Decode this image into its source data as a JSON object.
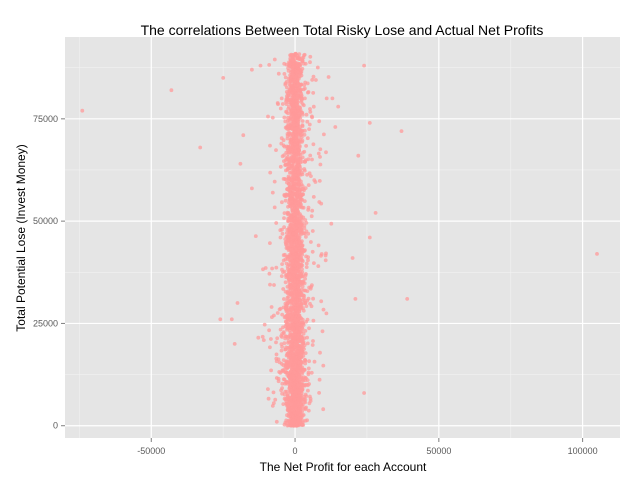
{
  "chart_data": {
    "type": "scatter",
    "title": "The correlations Between Total Risky Lose and Actual Net Profits",
    "xlabel": "The Net Profit for each Account",
    "ylabel": "Total Potential Lose (Invest Money)",
    "xlim": [
      -80000,
      113000
    ],
    "ylim": [
      -3000,
      95000
    ],
    "x_ticks": [
      -50000,
      0,
      50000,
      100000
    ],
    "x_tick_labels": [
      "-50000",
      "0",
      "50000",
      "100000"
    ],
    "y_ticks": [
      0,
      25000,
      50000,
      75000
    ],
    "y_tick_labels": [
      "0",
      "25000",
      "50000",
      "75000"
    ],
    "grid": true,
    "legend": "none",
    "point_color": "#ff9999",
    "panel_color": "#e5e5e5",
    "outliers": [
      {
        "x": -74000,
        "y": 77000
      },
      {
        "x": -43000,
        "y": 82000
      },
      {
        "x": -33000,
        "y": 68000
      },
      {
        "x": -25000,
        "y": 85000
      },
      {
        "x": -26000,
        "y": 26000
      },
      {
        "x": -20000,
        "y": 30000
      },
      {
        "x": -18000,
        "y": 71000
      },
      {
        "x": -21000,
        "y": 20000
      },
      {
        "x": -22000,
        "y": 26000
      },
      {
        "x": -15000,
        "y": 87000
      },
      {
        "x": -12000,
        "y": 88000
      },
      {
        "x": -19000,
        "y": 64000
      },
      {
        "x": 15000,
        "y": 78000
      },
      {
        "x": 14000,
        "y": 73000
      },
      {
        "x": 24000,
        "y": 88000
      },
      {
        "x": 26000,
        "y": 74000
      },
      {
        "x": 22000,
        "y": 66000
      },
      {
        "x": 28000,
        "y": 52000
      },
      {
        "x": 26000,
        "y": 46000
      },
      {
        "x": 37000,
        "y": 72000
      },
      {
        "x": 39000,
        "y": 31000
      },
      {
        "x": 20000,
        "y": 41000
      },
      {
        "x": 24000,
        "y": 8000
      },
      {
        "x": 105000,
        "y": 42000
      },
      {
        "x": 21000,
        "y": 31000
      },
      {
        "x": -15000,
        "y": 58000
      },
      {
        "x": 11000,
        "y": 80000
      },
      {
        "x": 13000,
        "y": 80000
      }
    ],
    "main_cluster": {
      "center_x": 0,
      "y_range": [
        0,
        91000
      ],
      "approx_points": 3000,
      "description_spread_note": "dense vertical band centered at x = 0, widening near y = 0"
    }
  }
}
